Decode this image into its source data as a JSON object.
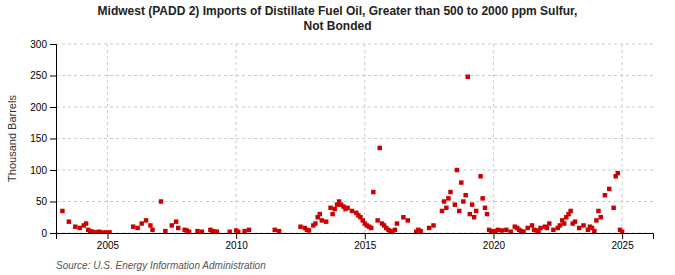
{
  "chart_data": {
    "type": "scatter",
    "title": "Midwest (PADD 2) Imports of Distillate Fuel Oil, Greater than 500 to 2000 ppm Sulfur,\nNot Bonded",
    "ylabel": "Thousand Barrels",
    "source": "Source: U.S. Energy Information Administration",
    "color": "#cc0000",
    "marker": "square",
    "grid": true,
    "xlim": [
      2003.0,
      2026.2
    ],
    "ylim": [
      0,
      300
    ],
    "xticks": [
      2005,
      2010,
      2015,
      2020,
      2025
    ],
    "yticks": [
      0,
      50,
      100,
      150,
      200,
      250,
      300
    ],
    "x": [
      2003.25,
      2003.5,
      2003.75,
      2003.92,
      2004.08,
      2004.17,
      2004.25,
      2004.33,
      2004.42,
      2004.58,
      2004.67,
      2004.75,
      2004.92,
      2005.08,
      2006.0,
      2006.17,
      2006.33,
      2006.5,
      2006.67,
      2006.75,
      2007.08,
      2007.25,
      2007.5,
      2007.67,
      2007.75,
      2008.0,
      2008.08,
      2008.17,
      2008.5,
      2008.67,
      2009.0,
      2009.08,
      2009.17,
      2009.25,
      2009.75,
      2010.0,
      2010.08,
      2010.33,
      2010.5,
      2011.5,
      2011.67,
      2012.5,
      2012.67,
      2012.75,
      2012.83,
      2013.0,
      2013.08,
      2013.17,
      2013.25,
      2013.33,
      2013.5,
      2013.67,
      2013.75,
      2013.83,
      2013.92,
      2014.0,
      2014.08,
      2014.17,
      2014.25,
      2014.33,
      2014.5,
      2014.67,
      2014.75,
      2014.83,
      2014.92,
      2015.0,
      2015.08,
      2015.17,
      2015.25,
      2015.33,
      2015.5,
      2015.58,
      2015.67,
      2015.75,
      2015.83,
      2015.92,
      2016.0,
      2016.08,
      2016.17,
      2016.25,
      2016.5,
      2016.67,
      2017.0,
      2017.08,
      2017.17,
      2017.5,
      2017.67,
      2018.0,
      2018.08,
      2018.17,
      2018.25,
      2018.33,
      2018.5,
      2018.58,
      2018.67,
      2018.75,
      2018.83,
      2018.92,
      2019.0,
      2019.08,
      2019.17,
      2019.25,
      2019.33,
      2019.5,
      2019.58,
      2019.67,
      2019.75,
      2019.83,
      2019.92,
      2020.0,
      2020.08,
      2020.17,
      2020.33,
      2020.5,
      2020.67,
      2020.83,
      2020.92,
      2021.0,
      2021.08,
      2021.17,
      2021.33,
      2021.5,
      2021.58,
      2021.67,
      2021.75,
      2021.83,
      2022.0,
      2022.08,
      2022.17,
      2022.33,
      2022.5,
      2022.58,
      2022.67,
      2022.75,
      2022.83,
      2022.92,
      2023.0,
      2023.08,
      2023.17,
      2023.33,
      2023.5,
      2023.67,
      2023.75,
      2023.83,
      2023.92,
      2024.0,
      2024.08,
      2024.17,
      2024.33,
      2024.5,
      2024.67,
      2024.75,
      2024.83,
      2024.92,
      2025.0
    ],
    "values": [
      35,
      18,
      10,
      8,
      12,
      15,
      5,
      3,
      2,
      1,
      2,
      1,
      1,
      1,
      10,
      8,
      15,
      20,
      12,
      5,
      50,
      3,
      12,
      18,
      8,
      5,
      4,
      2,
      3,
      2,
      5,
      3,
      2,
      2,
      2,
      4,
      2,
      3,
      5,
      5,
      3,
      10,
      8,
      5,
      4,
      12,
      15,
      25,
      30,
      20,
      18,
      40,
      30,
      38,
      45,
      50,
      45,
      42,
      38,
      40,
      35,
      32,
      28,
      25,
      20,
      15,
      12,
      10,
      8,
      65,
      20,
      135,
      15,
      12,
      8,
      5,
      3,
      2,
      5,
      15,
      25,
      20,
      2,
      5,
      3,
      8,
      12,
      35,
      50,
      40,
      55,
      65,
      45,
      100,
      35,
      80,
      50,
      60,
      248,
      30,
      45,
      25,
      35,
      90,
      55,
      40,
      30,
      5,
      2,
      3,
      2,
      5,
      4,
      5,
      2,
      10,
      8,
      5,
      3,
      2,
      8,
      12,
      5,
      4,
      3,
      8,
      10,
      8,
      15,
      5,
      8,
      12,
      20,
      15,
      25,
      30,
      35,
      15,
      18,
      8,
      12,
      5,
      10,
      8,
      3,
      20,
      35,
      25,
      60,
      70,
      40,
      90,
      95,
      5,
      2
    ]
  }
}
